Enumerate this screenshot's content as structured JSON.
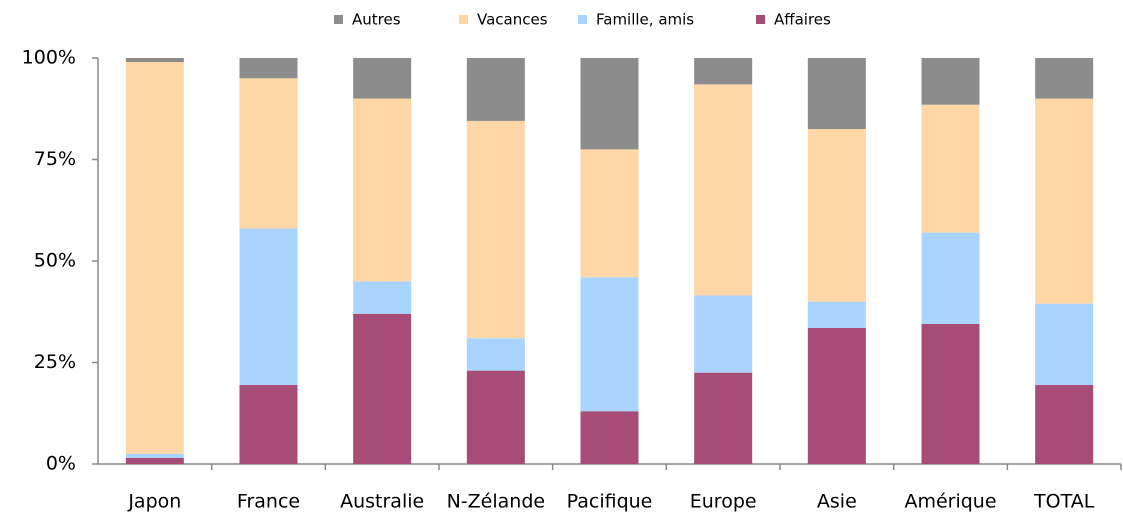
{
  "chart_data": {
    "type": "stacked_bar",
    "categories": [
      "Japon",
      "France",
      "Australie",
      "N-Zélande",
      "Pacifique",
      "Europe",
      "Asie",
      "Amérique",
      "TOTAL"
    ],
    "series": [
      {
        "name": "Affaires",
        "color": "#a64c76",
        "values": [
          1.5,
          19.5,
          37,
          23,
          13,
          22.5,
          33.5,
          34.5,
          19.5
        ]
      },
      {
        "name": "Famille, amis",
        "color": "#a9d4ff",
        "values": [
          1,
          38.5,
          8,
          8,
          33,
          19,
          6.5,
          22.5,
          20
        ]
      },
      {
        "name": "Vacances",
        "color": "#ffd6a5",
        "values": [
          96.5,
          37,
          45,
          53.5,
          31.5,
          52,
          42.5,
          31.5,
          50.5
        ]
      },
      {
        "name": "Autres",
        "color": "#8c8c8c",
        "values": [
          1,
          5,
          10,
          15.5,
          22.5,
          6.5,
          17.5,
          11.5,
          10
        ]
      }
    ],
    "ylim": [
      0,
      100
    ],
    "yticks": [
      {
        "value": 0,
        "label": "0%"
      },
      {
        "value": 25,
        "label": "25%"
      },
      {
        "value": 50,
        "label": "50%"
      },
      {
        "value": 75,
        "label": "75%"
      },
      {
        "value": 100,
        "label": "100%"
      }
    ],
    "grid": false,
    "legend": "top"
  }
}
